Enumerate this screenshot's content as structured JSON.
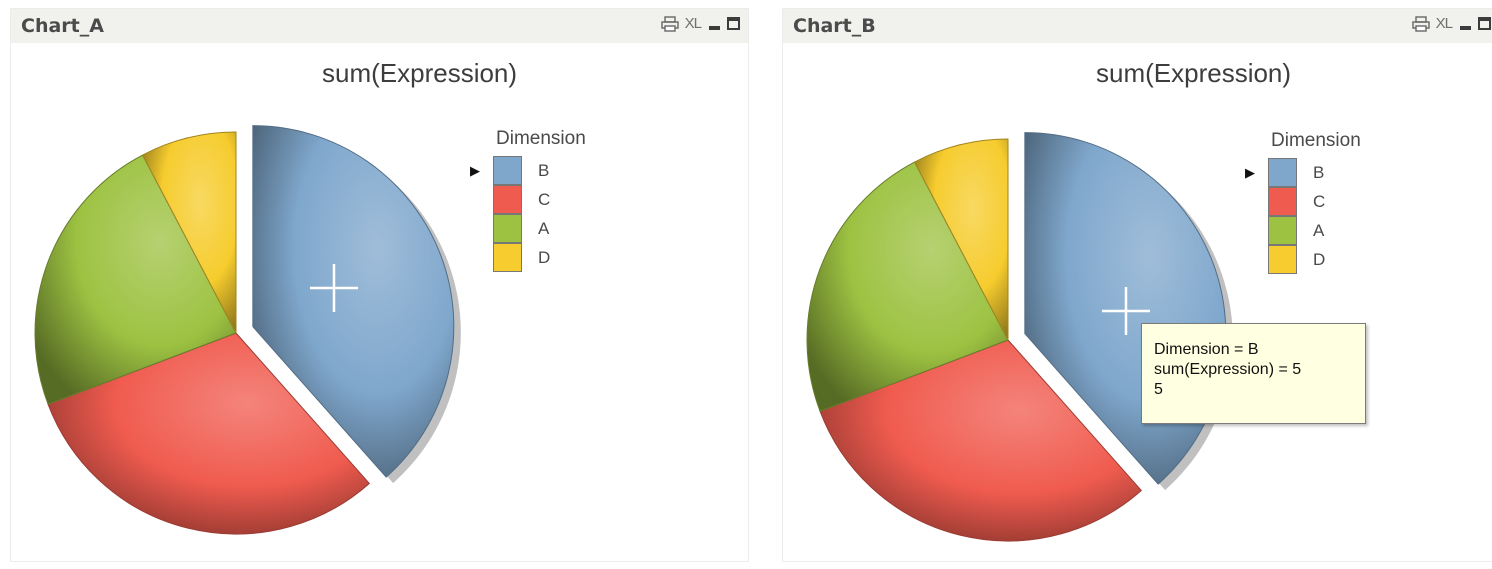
{
  "panels": [
    {
      "caption": "Chart_A",
      "icons": [
        "print-icon",
        "xl-icon",
        "minimize-icon",
        "maximize-icon"
      ],
      "xl_label": "XL"
    },
    {
      "caption": "Chart_B",
      "icons": [
        "print-icon",
        "xl-icon",
        "minimize-icon",
        "maximize-icon"
      ],
      "xl_label": "XL"
    }
  ],
  "chart_data": [
    {
      "type": "pie",
      "title": "sum(Expression)",
      "legend_title": "Dimension",
      "legend_placement": "right",
      "selected": "B",
      "slices": [
        {
          "label": "B",
          "value": 5,
          "color": "#7fa7cc",
          "exploded": true
        },
        {
          "label": "C",
          "value": 4,
          "color": "#f05b4f"
        },
        {
          "label": "A",
          "value": 3,
          "color": "#9dc242"
        },
        {
          "label": "D",
          "value": 1,
          "color": "#f6cc2e"
        }
      ]
    },
    {
      "type": "pie",
      "title": "sum(Expression)",
      "legend_title": "Dimension",
      "legend_placement": "right",
      "selected": "B",
      "slices": [
        {
          "label": "B",
          "value": 5,
          "color": "#7fa7cc",
          "exploded": true
        },
        {
          "label": "C",
          "value": 4,
          "color": "#f05b4f"
        },
        {
          "label": "A",
          "value": 3,
          "color": "#9dc242"
        },
        {
          "label": "D",
          "value": 1,
          "color": "#f6cc2e"
        }
      ],
      "tooltip": {
        "lines": [
          "Dimension = B",
          "sum(Expression) = 5",
          "5"
        ]
      }
    }
  ]
}
